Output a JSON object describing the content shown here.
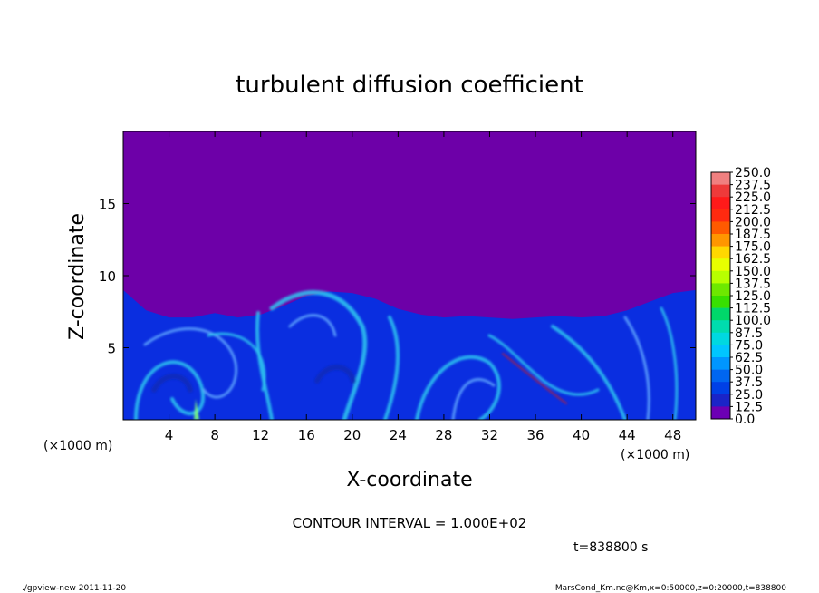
{
  "chart_data": {
    "type": "heatmap",
    "title": "turbulent diffusion coefficient",
    "xlabel": "X-coordinate",
    "ylabel": "Z-coordinate",
    "x_unit": "(×1000 m)",
    "y_unit": "(×1000 m)",
    "xlim": [
      0,
      50
    ],
    "ylim": [
      0,
      20
    ],
    "x_ticks": [
      4,
      8,
      12,
      16,
      20,
      24,
      28,
      32,
      36,
      40,
      44,
      48
    ],
    "y_ticks": [
      5,
      10,
      15
    ],
    "contour_interval_text": "CONTOUR INTERVAL = 1.000E+02",
    "time_text": "t=838800 s",
    "colorbar": {
      "levels": [
        "250.0",
        "237.5",
        "225.0",
        "212.5",
        "200.0",
        "187.5",
        "175.0",
        "162.5",
        "150.0",
        "137.5",
        "125.0",
        "112.5",
        "100.0",
        "87.5",
        "75.0",
        "62.5",
        "50.0",
        "37.5",
        "25.0",
        "12.5",
        "0.0"
      ],
      "colors": [
        "#f08080",
        "#ee3a3a",
        "#ff1a1a",
        "#ff2a10",
        "#ff5a00",
        "#ff9600",
        "#ffd800",
        "#e8ff00",
        "#b8ff00",
        "#6ee800",
        "#38e000",
        "#00d86a",
        "#00dcae",
        "#00d8e0",
        "#00c6ff",
        "#0096ff",
        "#0066f0",
        "#0040e6",
        "#1a24c8",
        "#6c00b4"
      ]
    },
    "background_color": "#6d00a8",
    "field_color": "#0a2ee0",
    "interface_height_profile": {
      "x": [
        0,
        2,
        4,
        6,
        8,
        10,
        12,
        14,
        16,
        18,
        20,
        22,
        24,
        26,
        28,
        30,
        32,
        34,
        36,
        38,
        40,
        42,
        44,
        46,
        48,
        50
      ],
      "z": [
        9.0,
        7.6,
        7.1,
        7.1,
        7.4,
        7.1,
        7.3,
        7.9,
        8.6,
        8.9,
        8.8,
        8.4,
        7.7,
        7.3,
        7.1,
        7.2,
        7.1,
        7.0,
        7.1,
        7.2,
        7.1,
        7.2,
        7.6,
        8.2,
        8.8,
        9.0
      ]
    }
  },
  "footer": {
    "left": "./gpview-new   2011-11-20",
    "right": "MarsCond_Km.nc@Km,x=0:50000,z=0:20000,t=838800"
  }
}
